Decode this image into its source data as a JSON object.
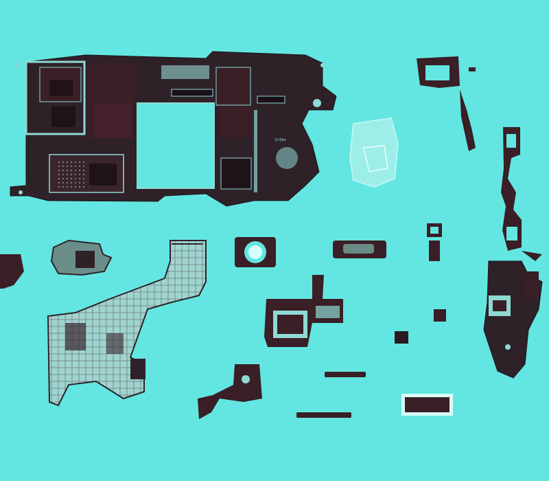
{
  "image": {
    "kind": "photo",
    "palette": {
      "background": "#63e6e1",
      "dark": "#3a1f26",
      "pcb": "#2f2128",
      "trace": "#8fd9d4",
      "flex_light": "#a9d7d1"
    }
  },
  "main_board": {
    "label": "ᴉᴏᴉɐᴏ"
  }
}
